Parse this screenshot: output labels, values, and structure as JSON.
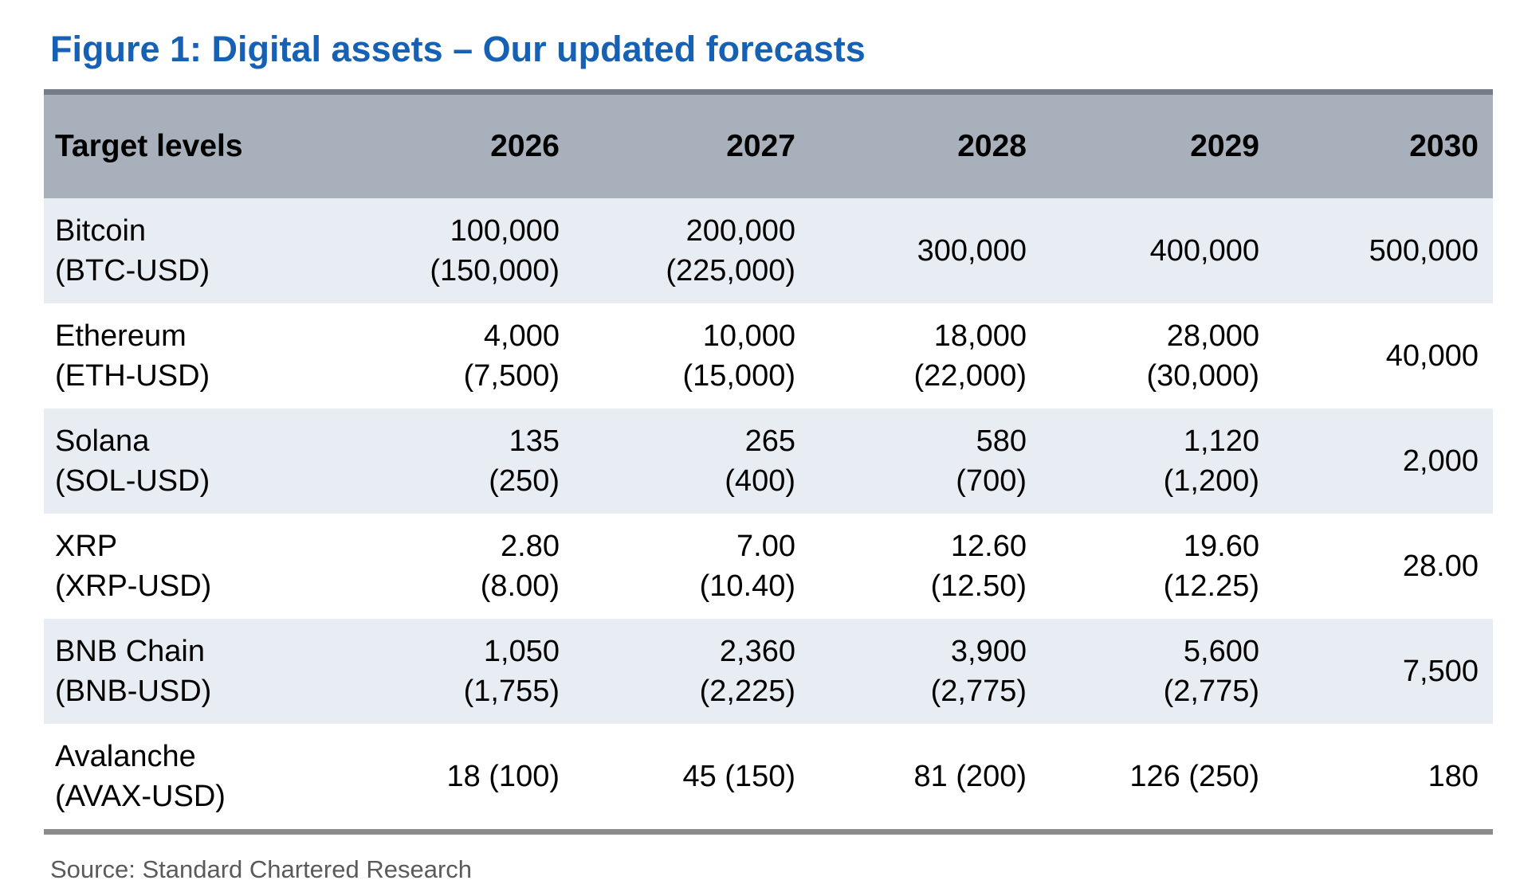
{
  "title": "Figure 1: Digital assets – Our updated forecasts",
  "source_note": "Source: Standard Chartered Research",
  "colors": {
    "title_blue": "#1661b4",
    "header_bg": "#a8b0bc",
    "header_top_border": "#747c86",
    "row_alt_bg": "#e8edf4",
    "row_bg": "#ffffff",
    "bottom_border": "#8c8c8c",
    "source_text": "#5a5a5a"
  },
  "table": {
    "columns": [
      "Target levels",
      "2026",
      "2027",
      "2028",
      "2029",
      "2030"
    ],
    "rows": [
      {
        "asset": [
          "Bitcoin",
          "(BTC-USD)"
        ],
        "cells": [
          [
            "100,000",
            "(150,000)"
          ],
          [
            "200,000",
            "(225,000)"
          ],
          [
            "300,000"
          ],
          [
            "400,000"
          ],
          [
            "500,000"
          ]
        ]
      },
      {
        "asset": [
          "Ethereum",
          "(ETH-USD)"
        ],
        "cells": [
          [
            "4,000",
            "(7,500)"
          ],
          [
            "10,000",
            "(15,000)"
          ],
          [
            "18,000",
            "(22,000)"
          ],
          [
            "28,000",
            "(30,000)"
          ],
          [
            "40,000"
          ]
        ]
      },
      {
        "asset": [
          "Solana",
          "(SOL-USD)"
        ],
        "cells": [
          [
            "135",
            "(250)"
          ],
          [
            "265",
            "(400)"
          ],
          [
            "580",
            "(700)"
          ],
          [
            "1,120",
            "(1,200)"
          ],
          [
            "2,000"
          ]
        ]
      },
      {
        "asset": [
          "XRP",
          "(XRP-USD)"
        ],
        "cells": [
          [
            "2.80",
            "(8.00)"
          ],
          [
            "7.00",
            "(10.40)"
          ],
          [
            "12.60",
            "(12.50)"
          ],
          [
            "19.60",
            "(12.25)"
          ],
          [
            "28.00"
          ]
        ]
      },
      {
        "asset": [
          "BNB Chain",
          "(BNB-USD)"
        ],
        "cells": [
          [
            "1,050",
            "(1,755)"
          ],
          [
            "2,360",
            "(2,225)"
          ],
          [
            "3,900",
            "(2,775)"
          ],
          [
            "5,600",
            "(2,775)"
          ],
          [
            "7,500"
          ]
        ]
      },
      {
        "asset": [
          "Avalanche",
          "(AVAX-USD)"
        ],
        "cells": [
          [
            "18 (100)"
          ],
          [
            "45 (150)"
          ],
          [
            "81 (200)"
          ],
          [
            "126 (250)"
          ],
          [
            "180"
          ]
        ]
      }
    ]
  },
  "chart_data": {
    "type": "table",
    "title": "Figure 1: Digital assets – Our updated forecasts",
    "columns": [
      "Target levels",
      "2026",
      "2027",
      "2028",
      "2029",
      "2030"
    ],
    "rows": [
      [
        "Bitcoin (BTC-USD)",
        "100,000 (150,000)",
        "200,000 (225,000)",
        "300,000",
        "400,000",
        "500,000"
      ],
      [
        "Ethereum (ETH-USD)",
        "4,000 (7,500)",
        "10,000 (15,000)",
        "18,000 (22,000)",
        "28,000 (30,000)",
        "40,000"
      ],
      [
        "Solana (SOL-USD)",
        "135 (250)",
        "265 (400)",
        "580 (700)",
        "1,120 (1,200)",
        "2,000"
      ],
      [
        "XRP (XRP-USD)",
        "2.80 (8.00)",
        "7.00 (10.40)",
        "12.60 (12.50)",
        "19.60 (12.25)",
        "28.00"
      ],
      [
        "BNB Chain (BNB-USD)",
        "1,050 (1,755)",
        "2,360 (2,225)",
        "3,900 (2,775)",
        "5,600 (2,775)",
        "7,500"
      ],
      [
        "Avalanche (AVAX-USD)",
        "18 (100)",
        "45 (150)",
        "81 (200)",
        "126 (250)",
        "180"
      ]
    ],
    "source": "Source: Standard Chartered Research"
  }
}
